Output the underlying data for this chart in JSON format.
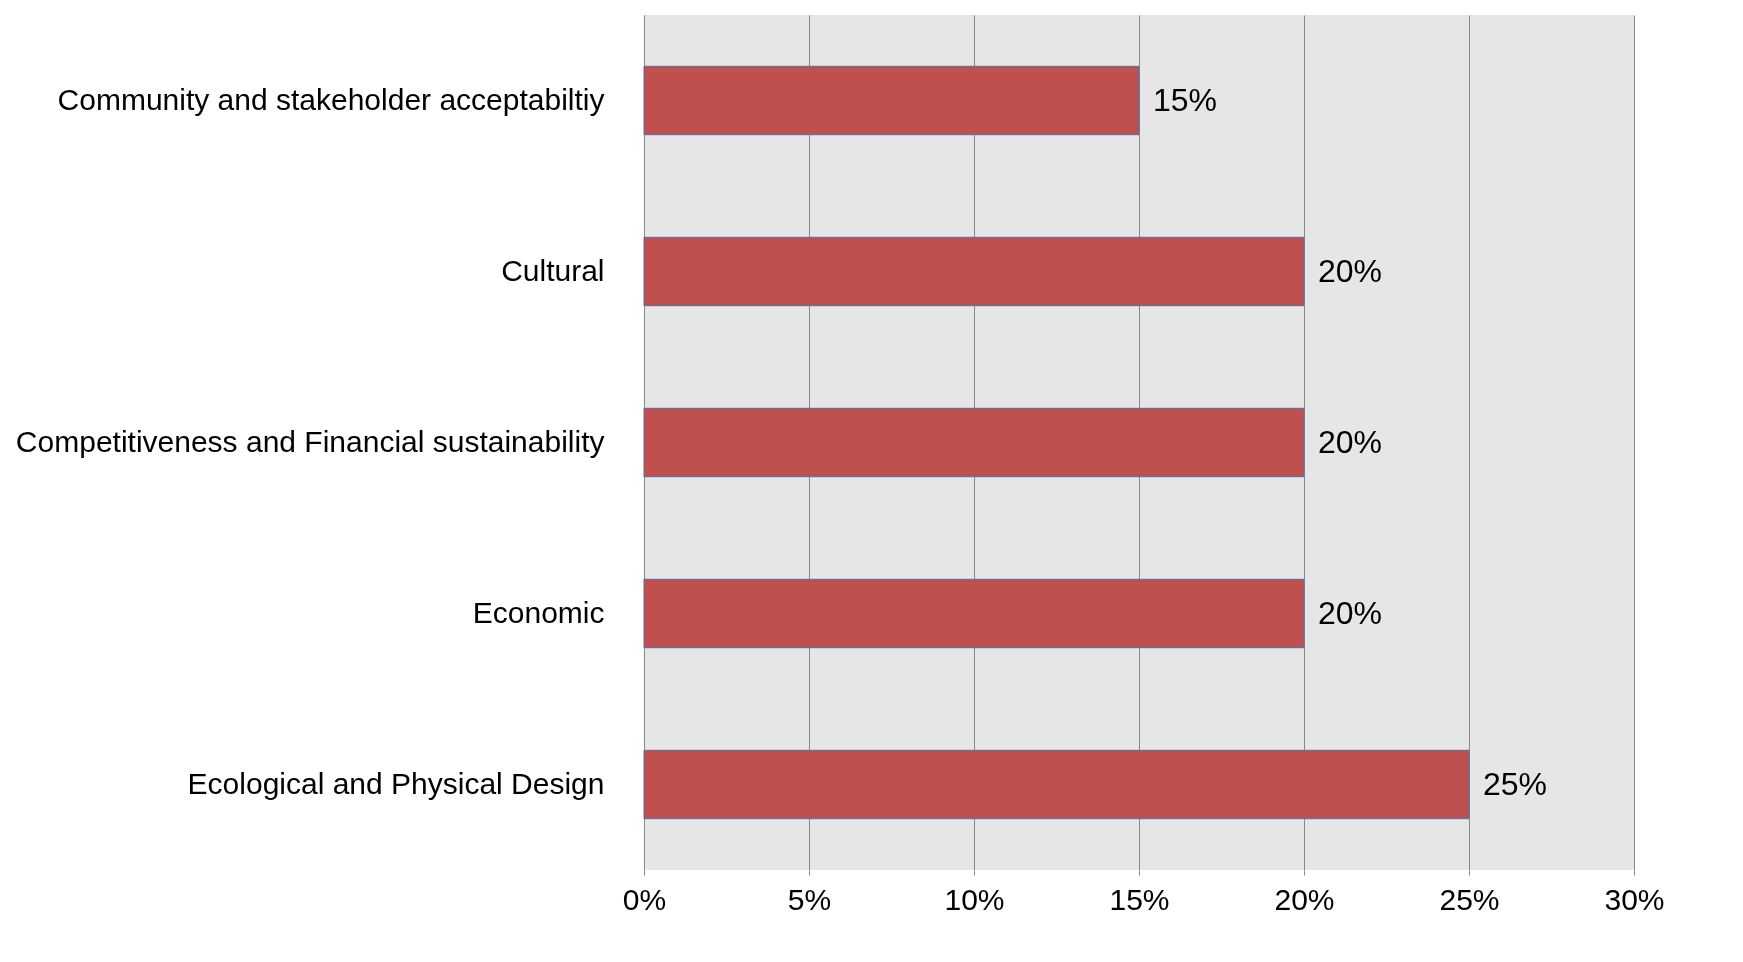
{
  "chart_data": {
    "type": "bar",
    "orientation": "horizontal",
    "categories": [
      "Community and stakeholder acceptabiltiy",
      "Cultural",
      "Competitiveness and Financial sustainability",
      "Economic",
      "Ecological and Physical Design"
    ],
    "series": [
      {
        "color": "#c0504d",
        "values": [
          15,
          20,
          20,
          20,
          25
        ]
      }
    ],
    "value_labels": [
      "15%",
      "20%",
      "20%",
      "20%",
      "25%"
    ],
    "xlim": [
      0,
      30
    ],
    "xticks": [
      {
        "value": 0,
        "label": "0%"
      },
      {
        "value": 5,
        "label": "5%"
      },
      {
        "value": 10,
        "label": "10%"
      },
      {
        "value": 15,
        "label": "15%"
      },
      {
        "value": 20,
        "label": "20%"
      },
      {
        "value": 25,
        "label": "25%"
      },
      {
        "value": 30,
        "label": "30%"
      }
    ],
    "grid": "x"
  }
}
